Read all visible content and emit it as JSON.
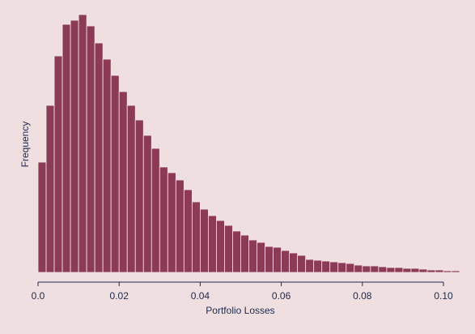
{
  "chart_data": {
    "type": "histogram",
    "x_label": "Portfolio Losses",
    "y_label": "Frequency",
    "color": "#8c3b56",
    "bins": [
      0,
      0.002,
      0.004,
      0.006,
      0.008,
      0.01,
      0.012,
      0.014,
      0.016,
      0.018,
      0.02,
      0.022,
      0.024,
      0.026,
      0.028,
      0.03,
      0.032,
      0.034,
      0.036,
      0.038,
      0.04,
      0.042,
      0.044,
      0.046,
      0.048,
      0.05,
      0.052,
      0.054,
      0.056,
      0.058,
      0.06,
      0.062,
      0.064,
      0.066,
      0.068,
      0.07,
      0.072,
      0.074,
      0.076,
      0.078,
      0.08,
      0.082,
      0.084,
      0.086,
      0.088,
      0.09,
      0.092,
      0.094,
      0.096,
      0.098,
      0.1,
      0.102,
      0.104
    ],
    "counts": [
      136,
      206,
      267,
      306,
      311,
      318,
      304,
      283,
      263,
      243,
      223,
      206,
      188,
      169,
      153,
      130,
      123,
      114,
      102,
      87,
      78,
      70,
      64,
      58,
      51,
      46,
      40,
      37,
      32,
      31,
      27,
      24,
      21,
      16,
      15,
      14,
      13,
      12,
      11,
      9,
      8,
      8,
      7,
      6,
      6,
      5,
      5,
      4,
      3,
      3,
      2,
      2
    ],
    "xlim": [
      0,
      0.1
    ],
    "xticks": [
      {
        "value": 0,
        "label": "0.0"
      },
      0.02,
      0.04,
      0.06,
      0.08,
      {
        "value": 0.1,
        "label": "0.10"
      }
    ],
    "ylim": [
      0,
      320
    ]
  }
}
